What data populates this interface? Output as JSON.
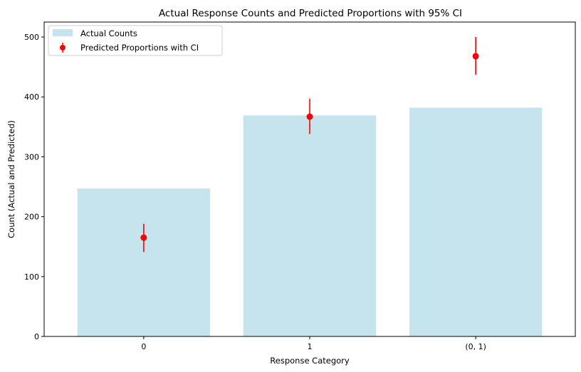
{
  "chart_data": {
    "type": "bar",
    "title": "Actual Response Counts and Predicted Proportions with 95% CI",
    "xlabel": "Response Category",
    "ylabel": "Count (Actual and Predicted)",
    "categories": [
      "0",
      "1",
      "(0, 1)"
    ],
    "ylim": [
      0,
      525
    ],
    "yticks": [
      0,
      100,
      200,
      300,
      400,
      500
    ],
    "grid": false,
    "legend_position": "upper-left",
    "series": [
      {
        "name": "Actual Counts",
        "kind": "bar",
        "color": "#add8e6",
        "values": [
          247,
          369,
          382
        ]
      },
      {
        "name": "Predicted Proportions with CI",
        "kind": "errorbar",
        "color": "#ff0000",
        "values": [
          165,
          367,
          468
        ],
        "ci_lower": [
          141,
          338,
          437
        ],
        "ci_upper": [
          188,
          397,
          500
        ]
      }
    ]
  }
}
